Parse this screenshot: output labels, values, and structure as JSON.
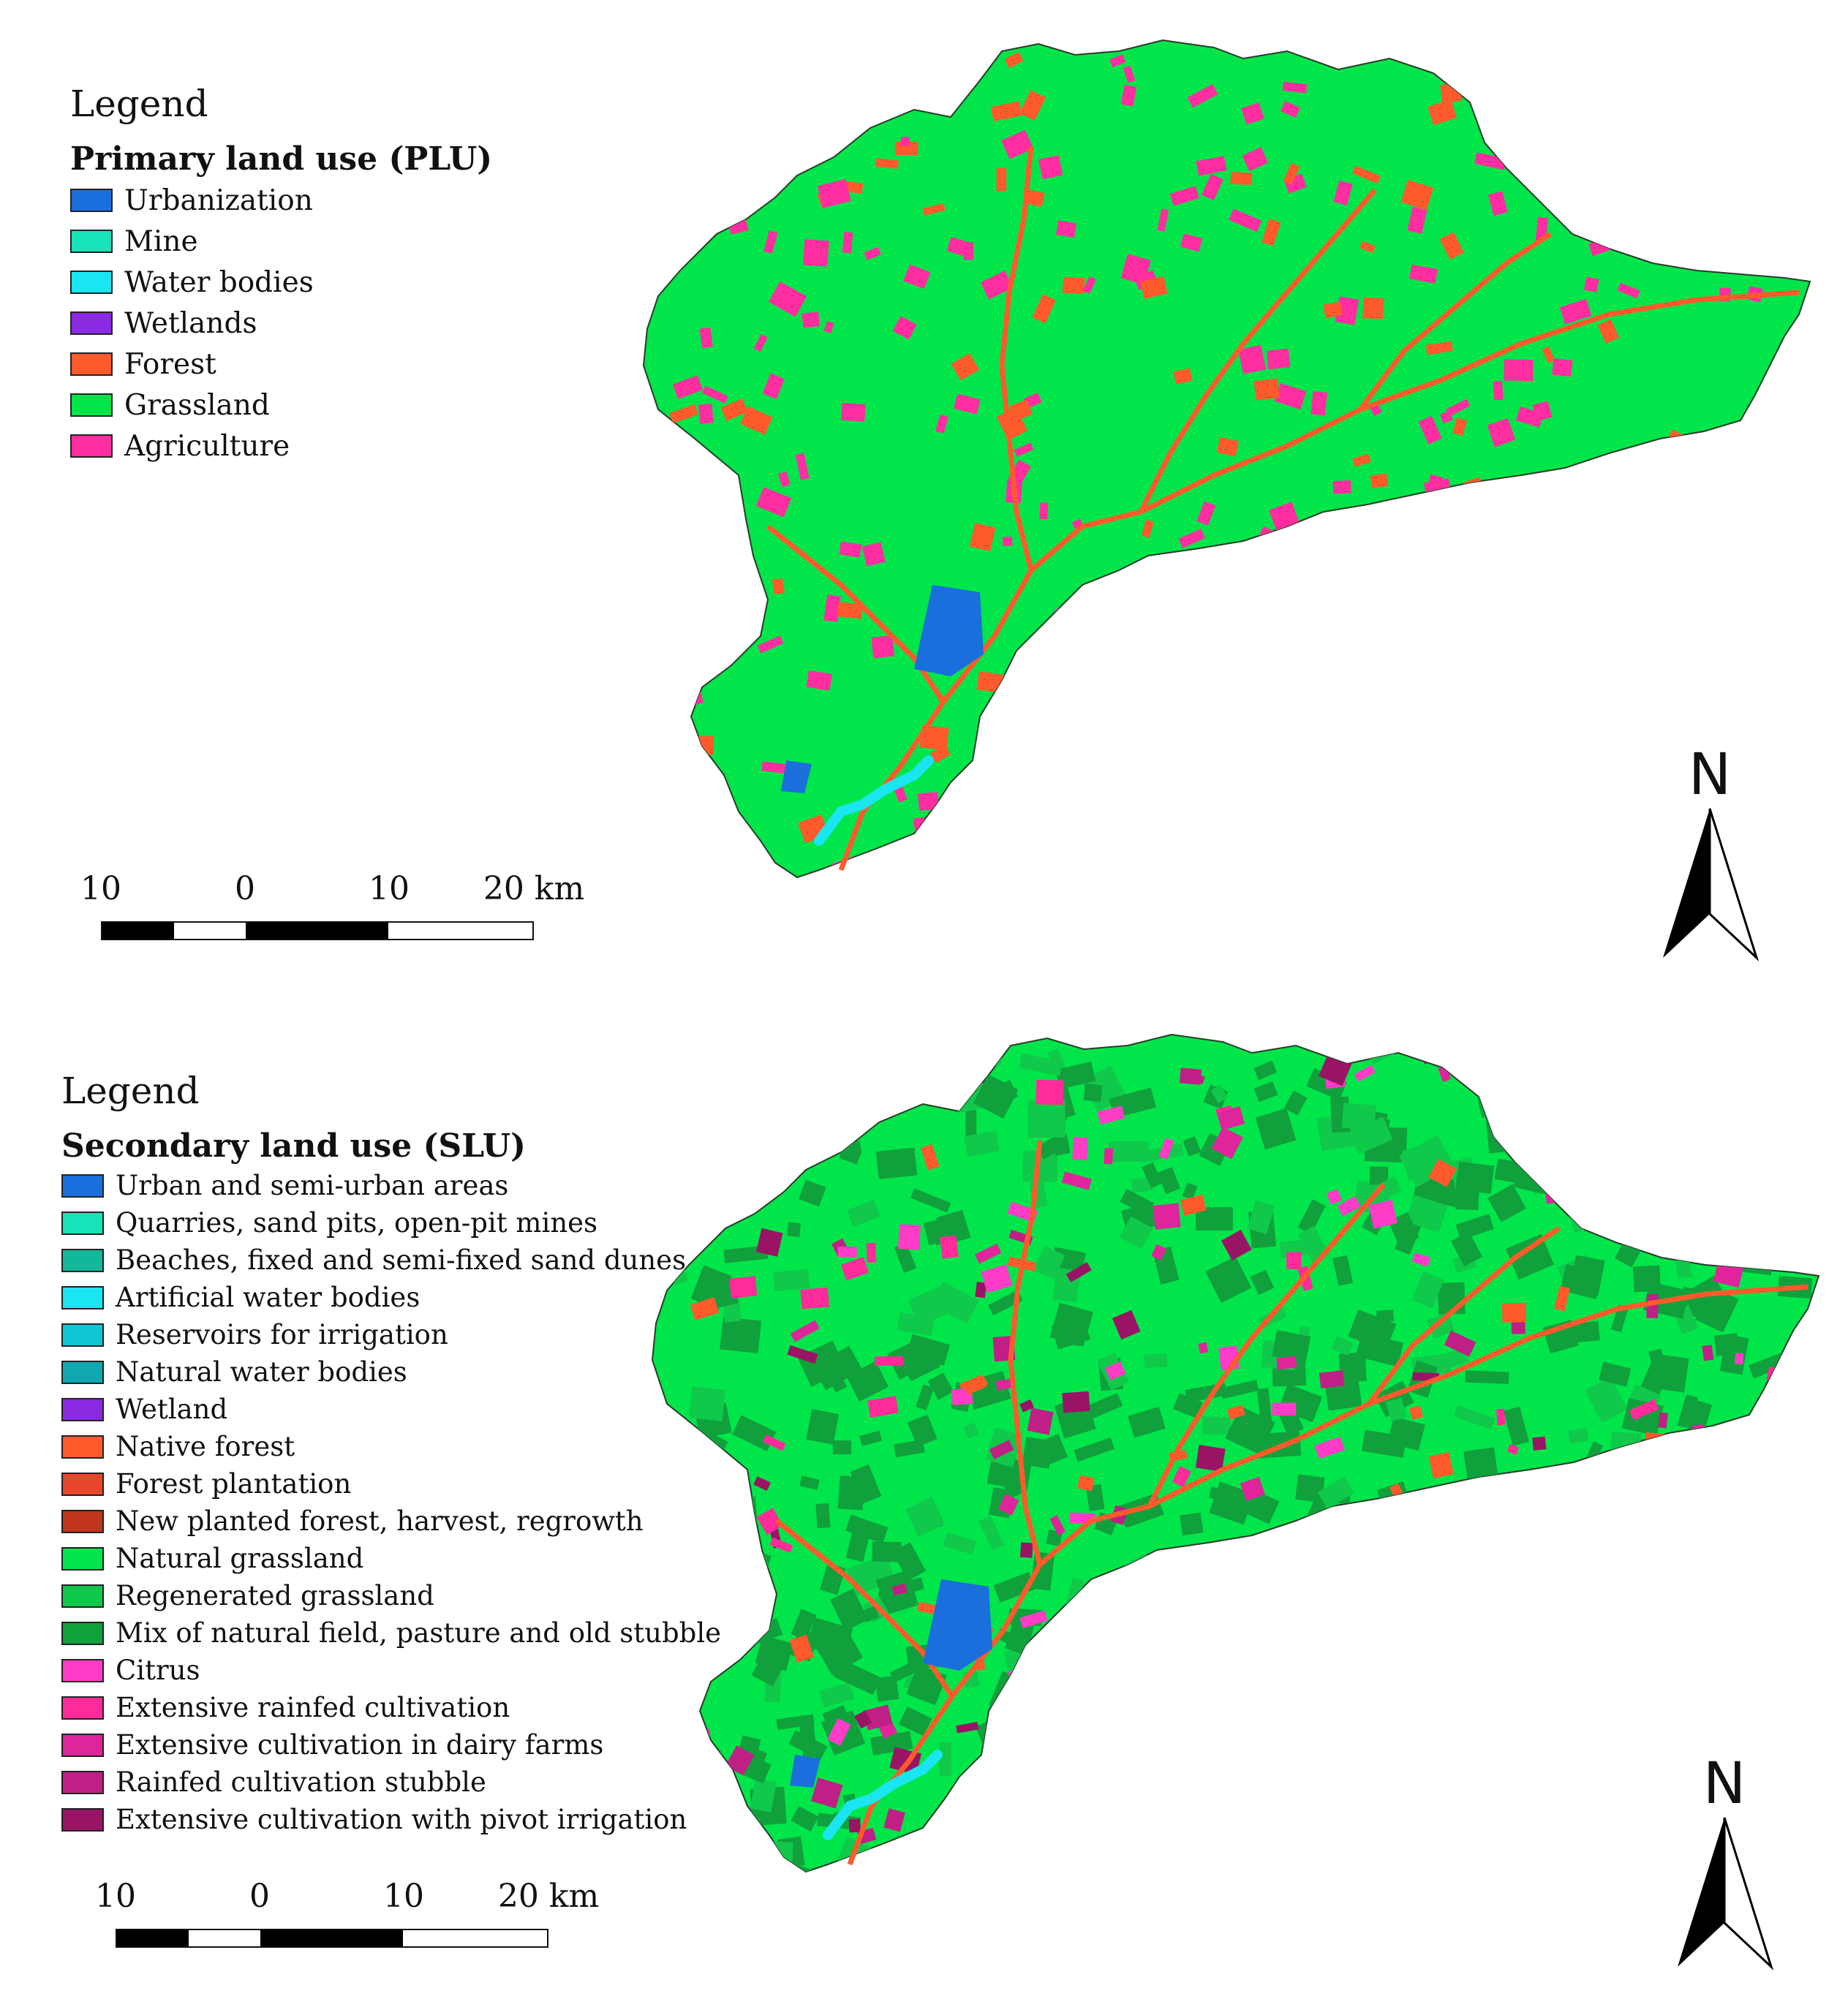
{
  "colors": {
    "urban": "#1a6fdc",
    "mine": "#19e3b8",
    "water": "#19e6f0",
    "wetland": "#8a2be2",
    "forest": "#ff5a2c",
    "grassland": "#00e64a",
    "agriculture": "#ff2ea0",
    "sand_dunes": "#12b89a",
    "reservoirs": "#12c6d8",
    "natural_water": "#0fa8b0",
    "forest_plantation": "#e8462a",
    "new_forest": "#c0351d",
    "regen_grassland": "#10c84a",
    "mix_field": "#10a03c",
    "citrus": "#ff3cc8",
    "ext_rainfed": "#ff2b9a",
    "dairy": "#e0249c",
    "stubble": "#c01f86",
    "pivot": "#9a1466"
  },
  "plu": {
    "legend_title": "Legend",
    "legend_subtitle": "Primary land use (PLU)",
    "items": [
      {
        "label": "Urbanization",
        "color": "#1a6fdc"
      },
      {
        "label": "Mine",
        "color": "#19e3b8"
      },
      {
        "label": "Water bodies",
        "color": "#19e6f0"
      },
      {
        "label": "Wetlands",
        "color": "#8a2be2"
      },
      {
        "label": "Forest",
        "color": "#ff5a2c"
      },
      {
        "label": "Grassland",
        "color": "#00e64a"
      },
      {
        "label": "Agriculture",
        "color": "#ff2ea0"
      }
    ],
    "scale": {
      "labels": [
        "10",
        "0",
        "10",
        "20 km"
      ]
    },
    "north": "N"
  },
  "slu": {
    "legend_title": "Legend",
    "legend_subtitle": "Secondary land use (SLU)",
    "items": [
      {
        "label": "Urban and semi-urban areas",
        "color": "#1a6fdc"
      },
      {
        "label": "Quarries, sand pits, open-pit mines",
        "color": "#19e3b8"
      },
      {
        "label": "Beaches, fixed and semi-fixed sand dunes",
        "color": "#12b89a"
      },
      {
        "label": "Artificial water bodies",
        "color": "#19e6f0"
      },
      {
        "label": "Reservoirs for irrigation",
        "color": "#12c6d8"
      },
      {
        "label": "Natural water bodies",
        "color": "#0fa8b0"
      },
      {
        "label": "Wetland",
        "color": "#8a2be2"
      },
      {
        "label": "Native forest",
        "color": "#ff5a2c"
      },
      {
        "label": "Forest plantation",
        "color": "#e8462a"
      },
      {
        "label": "New planted forest, harvest, regrowth",
        "color": "#c0351d"
      },
      {
        "label": "Natural grassland",
        "color": "#00e64a"
      },
      {
        "label": "Regenerated grassland",
        "color": "#10c84a"
      },
      {
        "label": "Mix of natural field, pasture and old stubble",
        "color": "#10a03c"
      },
      {
        "label": "Citrus",
        "color": "#ff3cc8"
      },
      {
        "label": "Extensive rainfed cultivation",
        "color": "#ff2b9a"
      },
      {
        "label": "Extensive cultivation in dairy farms",
        "color": "#e0249c"
      },
      {
        "label": "Rainfed cultivation stubble",
        "color": "#c01f86"
      },
      {
        "label": "Extensive cultivation with pivot irrigation",
        "color": "#9a1466"
      }
    ],
    "scale": {
      "labels": [
        "10",
        "0",
        "10",
        "20 km"
      ]
    },
    "north": "N"
  }
}
